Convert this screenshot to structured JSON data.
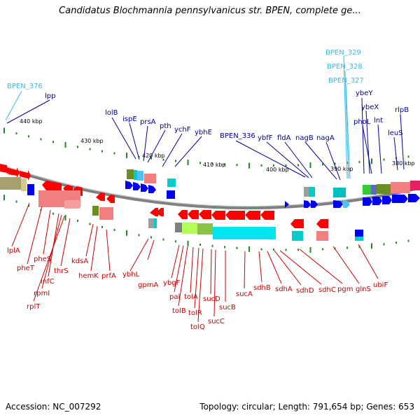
{
  "title": "Candidatus Blochmannia pennsylvanicus str. BPEN, complete ge...",
  "footer": {
    "accession": "Accession: NC_007292",
    "summary": "Topology: circular; Length: 791,654 bp; Genes: 653"
  },
  "colors": {
    "backbone": "#808080",
    "forward_label": "#000099",
    "reverse_label": "#cc0000",
    "pseudo_label": "#33bbee",
    "tick": "#228822"
  },
  "kbp_ticks": [
    "440 kbp",
    "430 kbp",
    "420 kbp",
    "410 kbp",
    "400 kbp",
    "390 kbp",
    "380 kbp"
  ],
  "forward_labels": [
    "BPEN_376",
    "lpp",
    "lolB",
    "ispE",
    "prsA",
    "pth",
    "ychF",
    "ybhE",
    "BPEN_336",
    "ybfF",
    "fldA",
    "nagB",
    "nagA",
    "BPEN_329",
    "BPEN_328",
    "BPEN_327",
    "ybeY",
    "ybeX",
    "phoL",
    "lnt",
    "rlpB",
    "leuS"
  ],
  "reverse_labels": [
    "lplA",
    "pheT",
    "pheS",
    "infC",
    "rpmI",
    "rplT",
    "thrS",
    "kdsA",
    "hemK",
    "prfA",
    "ybhL",
    "gpmA",
    "ybgF",
    "pal",
    "tolA",
    "tolB",
    "tolR",
    "tolQ",
    "sucD",
    "sucC",
    "sucB",
    "sucA",
    "sdhB",
    "sdhA",
    "sdhD",
    "sdhC",
    "pgm",
    "glnS",
    "ubiF"
  ]
}
